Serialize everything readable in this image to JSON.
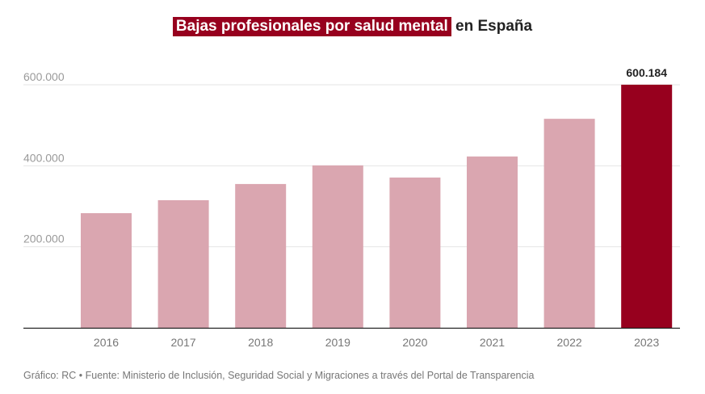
{
  "chart_data": {
    "type": "bar",
    "title_highlight": "Bajas profesionales por salud mental",
    "title_rest": "en España",
    "categories": [
      "2016",
      "2017",
      "2018",
      "2019",
      "2020",
      "2021",
      "2022",
      "2023"
    ],
    "values": [
      283000,
      315000,
      355000,
      401000,
      371000,
      423000,
      516000,
      600184
    ],
    "highlight_index": 7,
    "data_labels": [
      {
        "index": 7,
        "text": "600.184"
      }
    ],
    "yticks": [
      {
        "value": 200000,
        "label": "200.000"
      },
      {
        "value": 400000,
        "label": "400.000"
      },
      {
        "value": 600000,
        "label": "600.000"
      }
    ],
    "ylim": [
      0,
      600000
    ],
    "xlabel": "",
    "ylabel": "",
    "grid": true,
    "colors": {
      "bar": "#daa6b0",
      "highlight": "#97001e",
      "grid": "#e6e6e6",
      "axis": "#222222"
    }
  },
  "footer": {
    "source": "Gráfico: RC • Fuente: Ministerio de Inclusión, Seguridad Social y Migraciones a través del Portal de Transparencia"
  }
}
